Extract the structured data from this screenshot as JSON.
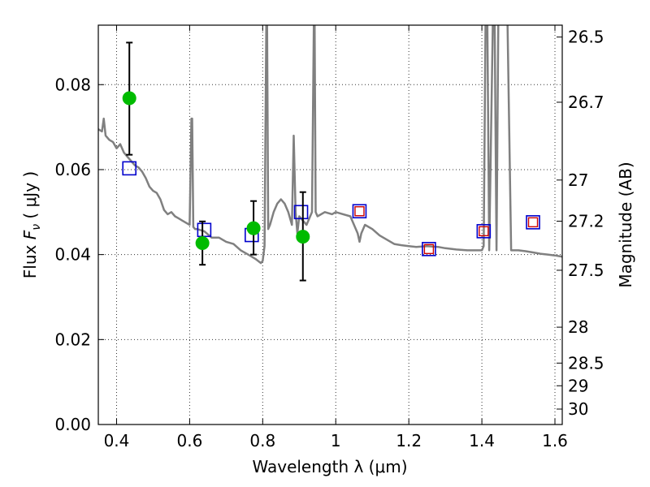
{
  "chart_data": {
    "type": "scatter",
    "xlabel": "Wavelength  λ (μm)",
    "ylabel": "Flux  F_ν  ( μJy )",
    "ylabel_parts": {
      "a": "Flux  ",
      "b": "F",
      "sub": "ν",
      "c": "  ( μJy )"
    },
    "y2label": "Magnitude (AB)",
    "xlim": [
      0.35,
      1.62
    ],
    "ylim": [
      0.0,
      0.094
    ],
    "grid": true,
    "xticks": [
      0.4,
      0.6,
      0.8,
      1.0,
      1.2,
      1.4,
      1.6
    ],
    "xtick_labels": [
      "0.4",
      "0.6",
      "0.8",
      "1",
      "1.2",
      "1.4",
      "1.6"
    ],
    "yticks": [
      0.0,
      0.02,
      0.04,
      0.06,
      0.08
    ],
    "ytick_labels": [
      "0.00",
      "0.02",
      "0.04",
      "0.06",
      "0.08"
    ],
    "mag_ticks": [
      26.5,
      26.7,
      27,
      27.2,
      27.5,
      28,
      28.5,
      29,
      30
    ],
    "mag_tick_labels": [
      "26.5",
      "26.7",
      "27",
      "27.2",
      "27.5",
      "28",
      "28.5",
      "29",
      "30"
    ],
    "colors": {
      "model": "#808080",
      "detections": "#00bb00",
      "model_photometry": "#0000cc",
      "predicted_photometry": "#cc0000",
      "errorbar": "#000000"
    },
    "detections": [
      {
        "x": 0.435,
        "y": 0.0768,
        "yerr_low": 0.0635,
        "yerr_high": 0.0899
      },
      {
        "x": 0.635,
        "y": 0.0427,
        "yerr_low": 0.0376,
        "yerr_high": 0.0478
      },
      {
        "x": 0.775,
        "y": 0.0462,
        "yerr_low": 0.04,
        "yerr_high": 0.0526
      },
      {
        "x": 0.91,
        "y": 0.0442,
        "yerr_low": 0.0339,
        "yerr_high": 0.0547
      }
    ],
    "model_photometry": [
      {
        "x": 0.435,
        "y": 0.0603
      },
      {
        "x": 0.64,
        "y": 0.0458
      },
      {
        "x": 0.77,
        "y": 0.0446
      },
      {
        "x": 0.905,
        "y": 0.05
      },
      {
        "x": 1.065,
        "y": 0.0502
      },
      {
        "x": 1.255,
        "y": 0.0413
      },
      {
        "x": 1.405,
        "y": 0.0455
      },
      {
        "x": 1.54,
        "y": 0.0476
      }
    ],
    "predicted_photometry": [
      {
        "x": 1.065,
        "y": 0.0502
      },
      {
        "x": 1.255,
        "y": 0.0413
      },
      {
        "x": 1.405,
        "y": 0.0455
      },
      {
        "x": 1.54,
        "y": 0.0476
      }
    ],
    "model_spectrum": {
      "x": [
        0.35,
        0.36,
        0.365,
        0.37,
        0.38,
        0.39,
        0.4,
        0.41,
        0.42,
        0.43,
        0.44,
        0.45,
        0.46,
        0.47,
        0.48,
        0.49,
        0.5,
        0.51,
        0.52,
        0.53,
        0.54,
        0.55,
        0.56,
        0.57,
        0.58,
        0.59,
        0.6,
        0.605,
        0.607,
        0.61,
        0.615,
        0.62,
        0.64,
        0.66,
        0.68,
        0.7,
        0.72,
        0.74,
        0.76,
        0.78,
        0.795,
        0.8,
        0.805,
        0.81,
        0.812,
        0.815,
        0.82,
        0.83,
        0.84,
        0.85,
        0.86,
        0.87,
        0.88,
        0.885,
        0.89,
        0.895,
        0.9,
        0.92,
        0.935,
        0.94,
        0.942,
        0.945,
        0.95,
        0.97,
        0.99,
        1.0,
        1.02,
        1.04,
        1.05,
        1.06,
        1.065,
        1.07,
        1.08,
        1.1,
        1.12,
        1.14,
        1.16,
        1.18,
        1.2,
        1.22,
        1.25,
        1.28,
        1.3,
        1.33,
        1.36,
        1.38,
        1.4,
        1.405,
        1.41,
        1.415,
        1.42,
        1.43,
        1.435,
        1.44,
        1.445,
        1.45,
        1.46,
        1.47,
        1.48,
        1.5,
        1.52,
        1.54,
        1.56,
        1.58,
        1.6,
        1.62
      ],
      "y": [
        0.0695,
        0.069,
        0.072,
        0.068,
        0.067,
        0.0665,
        0.065,
        0.066,
        0.064,
        0.063,
        0.062,
        0.061,
        0.0605,
        0.0595,
        0.058,
        0.056,
        0.055,
        0.0545,
        0.053,
        0.0505,
        0.0495,
        0.05,
        0.049,
        0.0485,
        0.048,
        0.0475,
        0.047,
        0.072,
        0.072,
        0.0465,
        0.046,
        0.046,
        0.0455,
        0.044,
        0.044,
        0.043,
        0.0425,
        0.041,
        0.04,
        0.039,
        0.038,
        0.0385,
        0.042,
        0.095,
        0.095,
        0.046,
        0.047,
        0.05,
        0.052,
        0.053,
        0.052,
        0.05,
        0.047,
        0.068,
        0.05,
        0.045,
        0.049,
        0.047,
        0.05,
        0.095,
        0.095,
        0.05,
        0.049,
        0.05,
        0.0495,
        0.05,
        0.0495,
        0.049,
        0.047,
        0.045,
        0.043,
        0.045,
        0.047,
        0.046,
        0.0445,
        0.0435,
        0.0425,
        0.0422,
        0.042,
        0.0418,
        0.042,
        0.0418,
        0.0415,
        0.0412,
        0.041,
        0.041,
        0.041,
        0.042,
        0.095,
        0.095,
        0.041,
        0.095,
        0.095,
        0.041,
        0.095,
        0.095,
        0.095,
        0.095,
        0.041,
        0.041,
        0.0408,
        0.0405,
        0.0402,
        0.04,
        0.0398,
        0.0395
      ]
    }
  }
}
